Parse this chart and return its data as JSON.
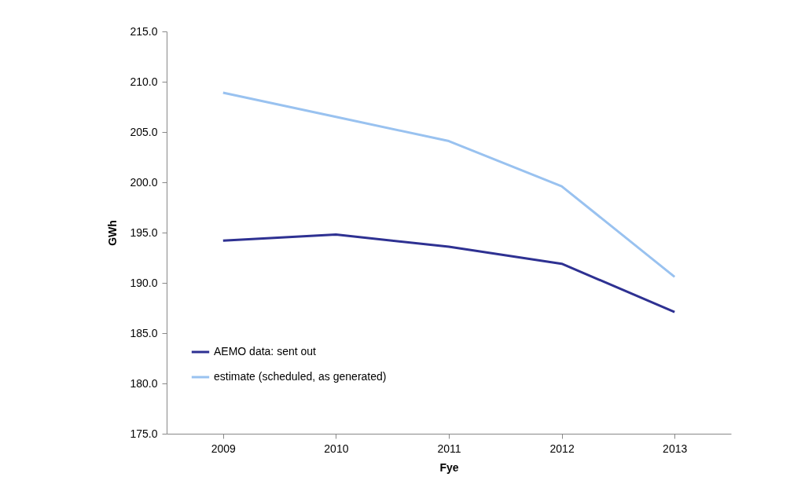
{
  "chart_data": {
    "type": "line",
    "xlabel": "Fye",
    "ylabel": "GWh",
    "categories": [
      "2009",
      "2010",
      "2011",
      "2012",
      "2013"
    ],
    "series": [
      {
        "name": "AEMO data: sent out",
        "color": "#2e3192",
        "values": [
          194.2,
          194.8,
          193.6,
          191.9,
          187.1
        ]
      },
      {
        "name": "estimate (scheduled, as generated)",
        "color": "#99c2f0",
        "values": [
          208.9,
          206.5,
          204.1,
          199.6,
          190.6
        ]
      }
    ],
    "ylim": [
      175,
      215
    ],
    "yticks": [
      {
        "value": 175,
        "label": "175.0"
      },
      {
        "value": 180,
        "label": "180.0"
      },
      {
        "value": 185,
        "label": "185.0"
      },
      {
        "value": 190,
        "label": "190.0"
      },
      {
        "value": 195,
        "label": "195.0"
      },
      {
        "value": 200,
        "label": "200.0"
      },
      {
        "value": 205,
        "label": "205.0"
      },
      {
        "value": 210,
        "label": "210.0"
      },
      {
        "value": 215,
        "label": "215.0"
      }
    ],
    "grid": false,
    "legend": "bottom left",
    "marker": "none",
    "line_style": "solid"
  }
}
